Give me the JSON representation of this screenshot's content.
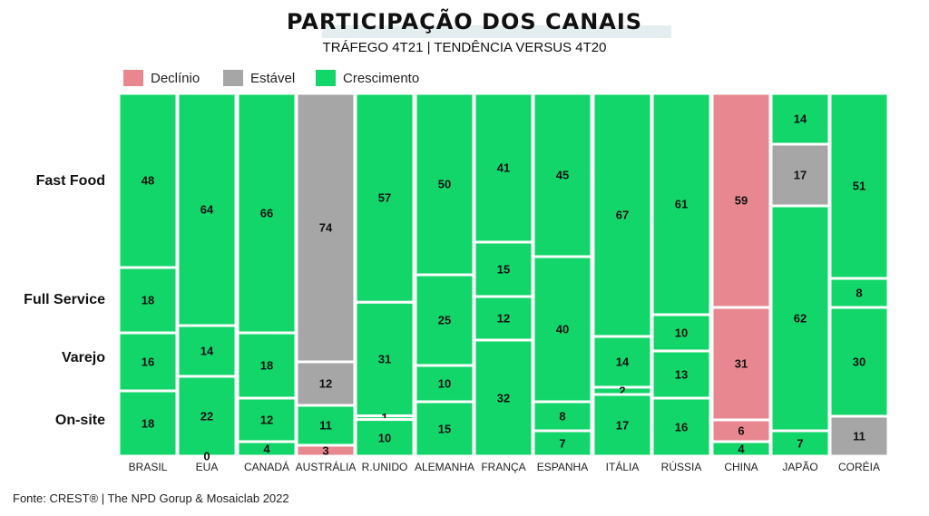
{
  "header": {
    "title": "PARTICIPAÇÃO DOS CANAIS",
    "subtitle": "TRÁFEGO 4T21  |  TENDÊNCIA VERSUS 4T20"
  },
  "footer": {
    "source": "Fonte: CREST® | The NPD Gorup &  Mosaiclab 2022"
  },
  "colors": {
    "declinio": "#e8878f",
    "estavel": "#a6a6a6",
    "crescimento": "#12d66a"
  },
  "chart_data": {
    "type": "mekko",
    "title": "PARTICIPAÇÃO DOS CANAIS",
    "subtitle": "TRÁFEGO 4T21  |  TENDÊNCIA VERSUS 4T20",
    "legend": [
      {
        "key": "declinio",
        "label": "Declínio"
      },
      {
        "key": "estavel",
        "label": "Estável"
      },
      {
        "key": "crescimento",
        "label": "Crescimento"
      }
    ],
    "segments_order": [
      "Fast Food",
      "Full Service",
      "Varejo",
      "On-site"
    ],
    "row_labels": [
      "Fast Food",
      "Full Service",
      "Varejo",
      "On-site"
    ],
    "countries": [
      {
        "name": "BRASIL",
        "values": [
          48,
          18,
          16,
          18
        ],
        "trend": [
          "crescimento",
          "crescimento",
          "crescimento",
          "crescimento"
        ]
      },
      {
        "name": "EUA",
        "values": [
          64,
          0,
          14,
          22
        ],
        "trend": [
          "crescimento",
          "crescimento",
          "crescimento",
          "crescimento"
        ],
        "onsite_extra": 0
      },
      {
        "name": "CANADÁ",
        "values": [
          66,
          0,
          18,
          12
        ],
        "trend": [
          "crescimento",
          "crescimento",
          "crescimento",
          "crescimento"
        ],
        "onsite_extra": 4
      },
      {
        "name": "AUSTRÁLIA",
        "values": [
          74,
          0,
          12,
          11
        ],
        "trend": [
          "estavel",
          "estavel",
          "estavel",
          "crescimento"
        ],
        "onsite_extra": 3,
        "onsite_extra_trend": "declinio"
      },
      {
        "name": "R.UNIDO",
        "values": [
          57,
          31,
          1,
          10
        ],
        "trend": [
          "crescimento",
          "crescimento",
          "crescimento",
          "crescimento"
        ]
      },
      {
        "name": "ALEMANHA",
        "values": [
          50,
          25,
          10,
          15
        ],
        "trend": [
          "crescimento",
          "crescimento",
          "crescimento",
          "crescimento"
        ]
      },
      {
        "name": "FRANÇA",
        "values": [
          41,
          15,
          12,
          32
        ],
        "trend": [
          "crescimento",
          "crescimento",
          "crescimento",
          "crescimento"
        ]
      },
      {
        "name": "ESPANHA",
        "values": [
          45,
          40,
          8,
          7
        ],
        "trend": [
          "crescimento",
          "crescimento",
          "crescimento",
          "crescimento"
        ]
      },
      {
        "name": "ITÁLIA",
        "values": [
          67,
          14,
          2,
          17
        ],
        "trend": [
          "crescimento",
          "crescimento",
          "crescimento",
          "crescimento"
        ]
      },
      {
        "name": "RÚSSIA",
        "values": [
          61,
          10,
          13,
          16
        ],
        "trend": [
          "crescimento",
          "crescimento",
          "crescimento",
          "crescimento"
        ]
      },
      {
        "name": "CHINA",
        "values": [
          59,
          31,
          6,
          4
        ],
        "trend": [
          "declinio",
          "declinio",
          "declinio",
          "crescimento"
        ]
      },
      {
        "name": "JAPÃO",
        "values": [
          14,
          17,
          62,
          7
        ],
        "trend": [
          "crescimento",
          "estavel",
          "crescimento",
          "crescimento"
        ]
      },
      {
        "name": "CORÉIA",
        "values": [
          51,
          8,
          30,
          11
        ],
        "trend": [
          "crescimento",
          "crescimento",
          "crescimento",
          "estavel"
        ]
      }
    ]
  }
}
